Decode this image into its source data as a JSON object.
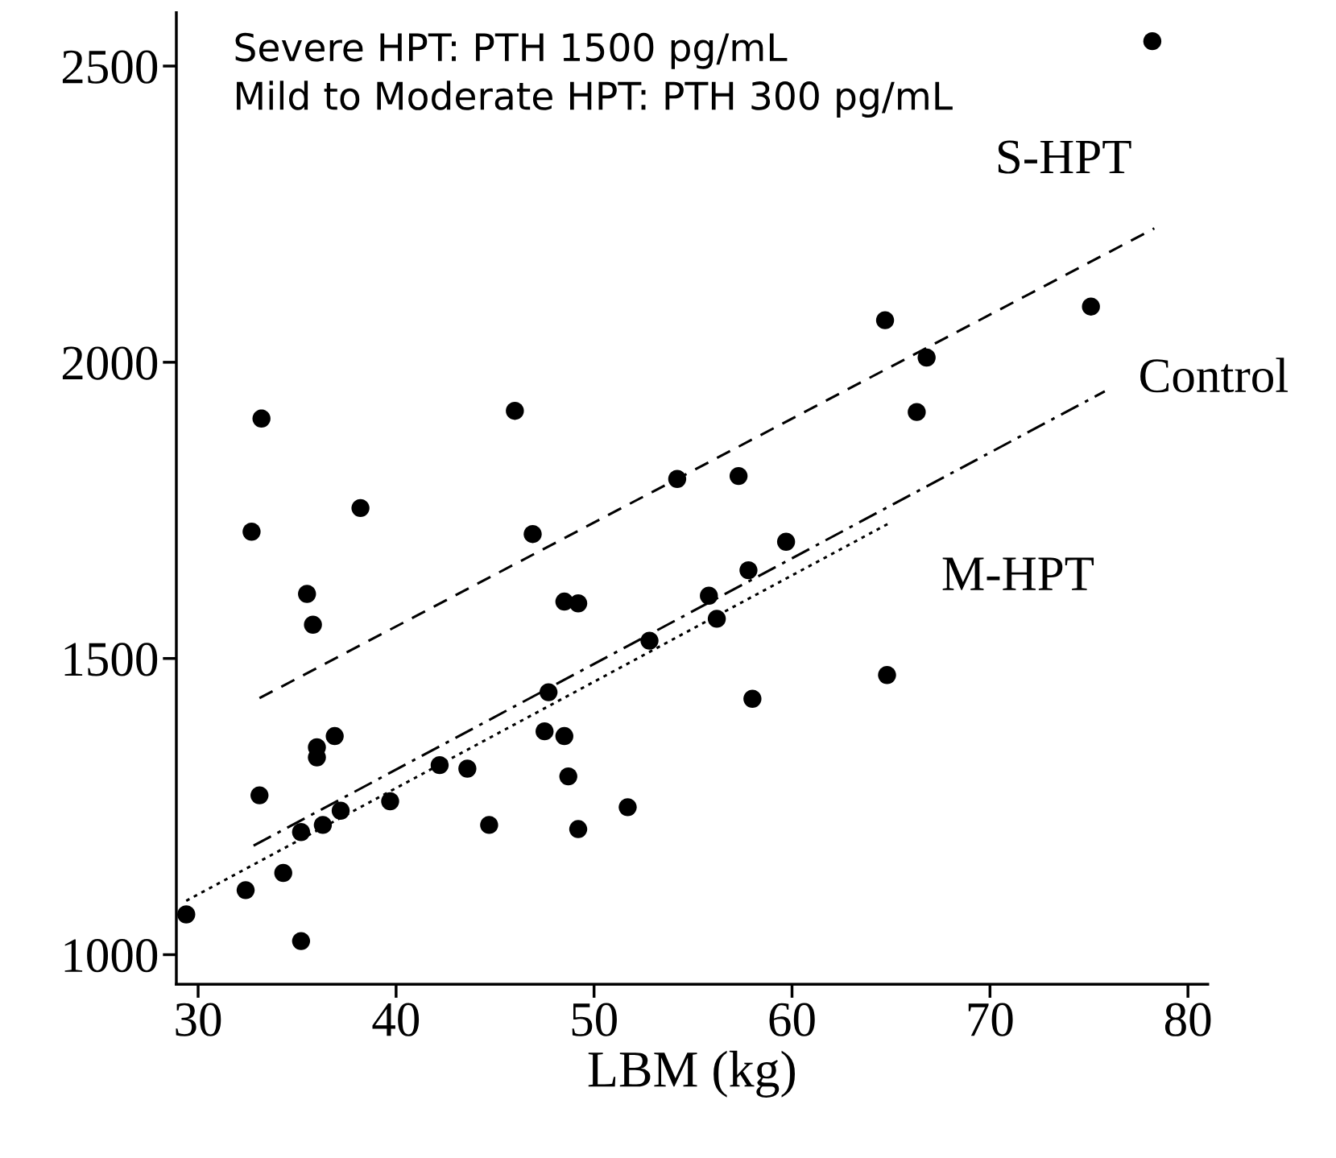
{
  "chart_data": {
    "type": "scatter",
    "xlabel": "LBM (kg)",
    "annotations": [
      "Severe HPT: PTH 1500 pg/mL",
      "Mild to Moderate HPT: PTH 300 pg/mL"
    ],
    "xlim": [
      28.9,
      81
    ],
    "ylim": [
      950,
      2590
    ],
    "xticks": [
      30,
      40,
      50,
      60,
      70,
      80
    ],
    "yticks": [
      1000,
      1500,
      2000,
      2500
    ],
    "grid": false,
    "legend": false,
    "series": [
      {
        "color": "#000000",
        "marker": "circle",
        "x": [
          29.4,
          32.4,
          33.2,
          32.7,
          33.1,
          34.3,
          35.2,
          35.2,
          35.5,
          35.8,
          36.0,
          36.0,
          36.3,
          36.9,
          37.2,
          38.2,
          39.7,
          42.2,
          43.6,
          44.7,
          46.0,
          46.9,
          47.7,
          47.5,
          48.5,
          48.5,
          49.2,
          48.7,
          49.2,
          51.7,
          52.8,
          54.2,
          55.8,
          56.2,
          57.3,
          57.8,
          58.0,
          59.7,
          64.7,
          64.8,
          66.3,
          66.8,
          75.1,
          78.2
        ],
        "values": [
          1068,
          1109,
          1905,
          1714,
          1269,
          1138,
          1023,
          1207,
          1609,
          1557,
          1350,
          1333,
          1219,
          1369,
          1243,
          1754,
          1259,
          1320,
          1314,
          1219,
          1918,
          1710,
          1443,
          1377,
          1369,
          1596,
          1593,
          1301,
          1212,
          1249,
          1530,
          1803,
          1606,
          1567,
          1808,
          1649,
          1432,
          1697,
          2071,
          1472,
          1916,
          2008,
          2094,
          2542
        ]
      },
      {
        "type": "line",
        "name": "S-HPT",
        "color": "#000000",
        "line_style": "dashed",
        "marker": "none",
        "x": [
          33.1,
          78.3
        ],
        "values": [
          1433,
          2226
        ]
      },
      {
        "type": "line",
        "name": "Control",
        "color": "#000000",
        "line_style": "dashdot",
        "marker": "none",
        "x": [
          32.8,
          75.8
        ],
        "values": [
          1184,
          1951
        ]
      },
      {
        "type": "line",
        "name": "M-HPT",
        "color": "#000000",
        "line_style": "dotted",
        "marker": "none",
        "x": [
          29.4,
          65.0
        ],
        "values": [
          1091,
          1730
        ]
      }
    ]
  }
}
